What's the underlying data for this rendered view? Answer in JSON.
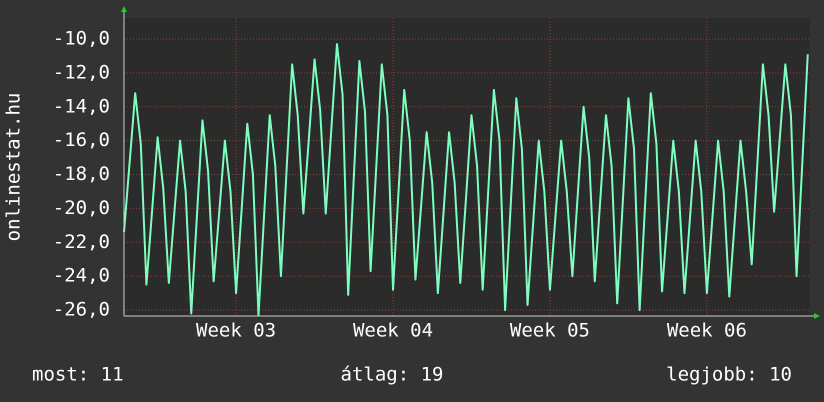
{
  "chart_data": {
    "type": "line",
    "y_label": "onlinestat.hu",
    "color": "#7dffbe",
    "grid": true,
    "xlim": [
      0,
      30.6
    ],
    "xticks": [
      {
        "value": 5,
        "label": "Week 03"
      },
      {
        "value": 12,
        "label": "Week 04"
      },
      {
        "value": 19,
        "label": "Week 05"
      },
      {
        "value": 26,
        "label": "Week 06"
      }
    ],
    "ylim": [
      -26.35,
      -8.76
    ],
    "yticks": [
      {
        "value": -10,
        "label": "-10,0"
      },
      {
        "value": -12,
        "label": "-12,0"
      },
      {
        "value": -14,
        "label": "-14,0"
      },
      {
        "value": -16,
        "label": "-16,0"
      },
      {
        "value": -18,
        "label": "-18,0"
      },
      {
        "value": -20,
        "label": "-20,0"
      },
      {
        "value": -22,
        "label": "-22,0"
      },
      {
        "value": -24,
        "label": "-24,0"
      },
      {
        "value": -26,
        "label": "-26,0"
      }
    ],
    "x": [
      0,
      0.25,
      0.5,
      0.75,
      1,
      1.25,
      1.5,
      1.75,
      2,
      2.25,
      2.5,
      2.75,
      3,
      3.25,
      3.5,
      3.75,
      4,
      4.25,
      4.5,
      4.75,
      5,
      5.25,
      5.5,
      5.75,
      6,
      6.25,
      6.5,
      6.75,
      7,
      7.25,
      7.5,
      7.75,
      8,
      8.25,
      8.5,
      8.75,
      9,
      9.25,
      9.5,
      9.75,
      10,
      10.25,
      10.5,
      10.75,
      11,
      11.25,
      11.5,
      11.75,
      12,
      12.25,
      12.5,
      12.75,
      13,
      13.25,
      13.5,
      13.75,
      14,
      14.25,
      14.5,
      14.75,
      15,
      15.25,
      15.5,
      15.75,
      16,
      16.25,
      16.5,
      16.75,
      17,
      17.25,
      17.5,
      17.75,
      18,
      18.25,
      18.5,
      18.75,
      19,
      19.25,
      19.5,
      19.75,
      20,
      20.25,
      20.5,
      20.75,
      21,
      21.25,
      21.5,
      21.75,
      22,
      22.25,
      22.5,
      22.75,
      23,
      23.25,
      23.5,
      23.75,
      24,
      24.25,
      24.5,
      24.75,
      25,
      25.25,
      25.5,
      25.75,
      26,
      26.25,
      26.5,
      26.75,
      27,
      27.25,
      27.5,
      27.75,
      28,
      28.25,
      28.5,
      28.75,
      29,
      29.25,
      29.5,
      29.75,
      30,
      30.25,
      30.5
    ],
    "values": [
      -21.4,
      -17.3,
      -13.2,
      -16.2,
      -24.5,
      -20.2,
      -15.8,
      -18.8,
      -24.4,
      -20.2,
      -16,
      -19,
      -26.2,
      -20.5,
      -14.8,
      -17.8,
      -24.3,
      -20.2,
      -16,
      -19,
      -25,
      -20,
      -15,
      -18,
      -26.3,
      -20.4,
      -14.5,
      -17.5,
      -24,
      -17.8,
      -11.5,
      -14.5,
      -20.3,
      -15.8,
      -11.2,
      -14.2,
      -20.3,
      -15.3,
      -10.3,
      -13.3,
      -25.1,
      -18.2,
      -11.3,
      -14.3,
      -23.7,
      -17.6,
      -11.5,
      -14.5,
      -24.8,
      -18.9,
      -13,
      -16,
      -24.2,
      -19.9,
      -15.5,
      -18.5,
      -25,
      -20.3,
      -15.5,
      -18.5,
      -24.4,
      -19.5,
      -14.5,
      -17.5,
      -24.8,
      -18.9,
      -13,
      -16,
      -26,
      -19.8,
      -13.5,
      -16.5,
      -25.7,
      -20.9,
      -16,
      -19,
      -24.8,
      -20.4,
      -16,
      -19,
      -24,
      -19,
      -14,
      -17,
      -24.3,
      -19.4,
      -14.5,
      -17.5,
      -25.6,
      -19.6,
      -13.5,
      -16.5,
      -26,
      -19.6,
      -13.2,
      -16.2,
      -24.9,
      -20.5,
      -16,
      -19,
      -25,
      -20.5,
      -16,
      -19,
      -25,
      -20.5,
      -16,
      -19,
      -25.2,
      -20.6,
      -16,
      -19,
      -23.3,
      -17.4,
      -11.5,
      -14.5,
      -20.2,
      -15.9,
      -11.5,
      -14.5,
      -24,
      -17.5,
      -10.9
    ],
    "footer": {
      "current": "most: 11",
      "average": "átlag: 19",
      "best": "legjobb: 10"
    }
  }
}
